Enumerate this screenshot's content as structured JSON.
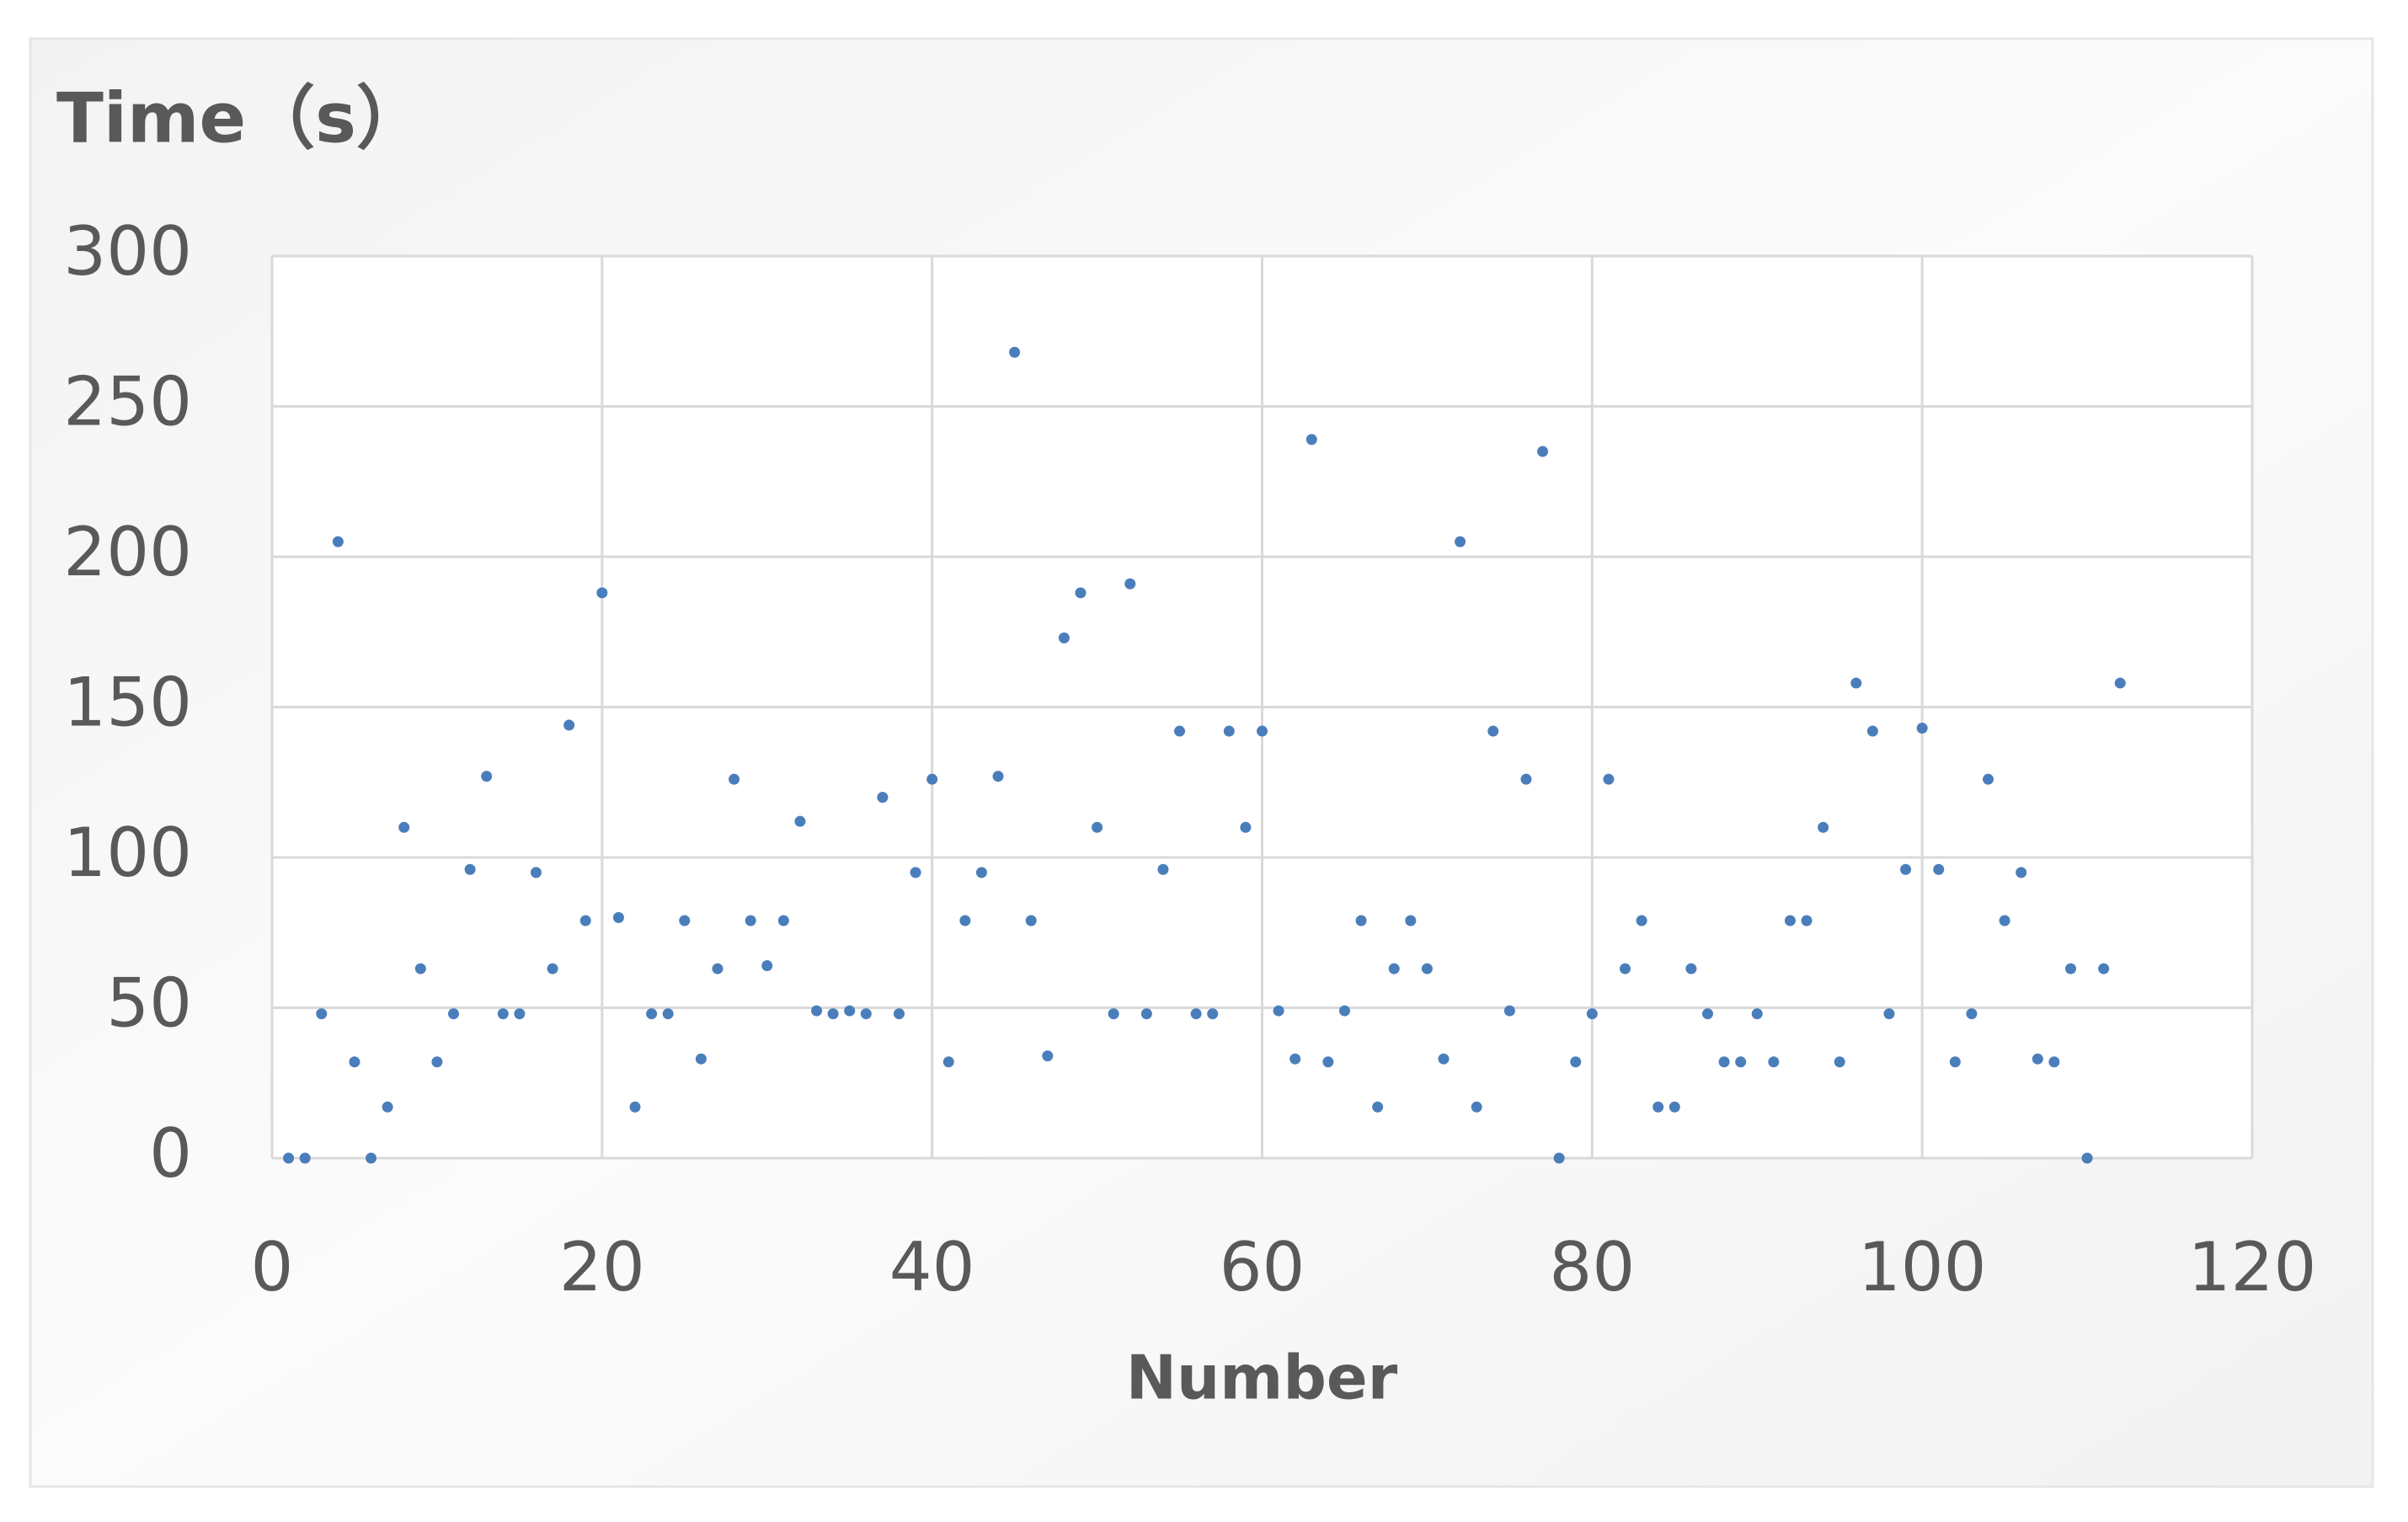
{
  "chart_data": {
    "type": "scatter",
    "title": "Time（s）",
    "x_label": "Number",
    "x": [
      1,
      2,
      3,
      4,
      5,
      6,
      7,
      8,
      9,
      10,
      11,
      12,
      13,
      14,
      15,
      16,
      17,
      18,
      19,
      20,
      21,
      22,
      23,
      24,
      25,
      26,
      27,
      28,
      29,
      30,
      31,
      32,
      33,
      34,
      35,
      36,
      37,
      38,
      39,
      40,
      41,
      42,
      43,
      44,
      45,
      46,
      47,
      48,
      49,
      50,
      51,
      52,
      53,
      54,
      55,
      56,
      57,
      58,
      59,
      60,
      61,
      62,
      63,
      64,
      65,
      66,
      67,
      68,
      69,
      70,
      71,
      72,
      73,
      74,
      75,
      76,
      77,
      78,
      79,
      80,
      81,
      82,
      83,
      84,
      85,
      86,
      87,
      88,
      89,
      90,
      91,
      92,
      93,
      94,
      95,
      96,
      97,
      98,
      99,
      100,
      101,
      102,
      103,
      104,
      105,
      106,
      107,
      108,
      109,
      110,
      111,
      112
    ],
    "values": [
      0,
      0,
      48,
      205,
      32,
      0,
      17,
      110,
      63,
      32,
      48,
      96,
      127,
      48,
      48,
      95,
      63,
      144,
      79,
      188,
      80,
      17,
      48,
      48,
      79,
      33,
      63,
      126,
      79,
      64,
      79,
      112,
      49,
      48,
      49,
      48,
      120,
      48,
      95,
      126,
      32,
      79,
      95,
      127,
      268,
      79,
      34,
      173,
      188,
      110,
      48,
      191,
      48,
      96,
      142,
      48,
      48,
      142,
      110,
      142,
      49,
      33,
      239,
      32,
      49,
      79,
      17,
      63,
      79,
      63,
      33,
      205,
      17,
      142,
      49,
      126,
      235,
      0,
      32,
      48,
      126,
      63,
      79,
      17,
      17,
      63,
      48,
      32,
      32,
      48,
      32,
      79,
      79,
      110,
      32,
      158,
      142,
      48,
      96,
      143,
      96,
      32,
      48,
      126,
      79,
      95,
      33,
      32,
      63,
      0,
      63,
      158
    ],
    "color": "#4a7ebb",
    "xlim": [
      0,
      120
    ],
    "xticks": [
      0,
      20,
      40,
      60,
      80,
      100,
      120
    ],
    "ylim": [
      0,
      300
    ],
    "yticks": [
      0,
      50,
      100,
      150,
      200,
      250,
      300
    ],
    "grid": true
  }
}
